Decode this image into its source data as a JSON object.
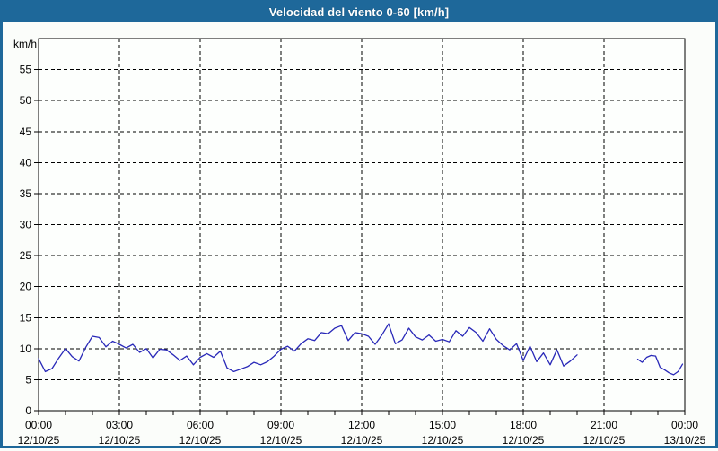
{
  "window": {
    "title": "Velocidad del viento 0-60 [km/h]"
  },
  "colors": {
    "titlebar_bg": "#1e689a",
    "frame_border": "#1e689a",
    "page_bg": "#fbfdfa",
    "plot_bg": "#fdfffd",
    "grid": "#000000",
    "text": "#000000",
    "line": "#2929b8"
  },
  "chart_data": {
    "type": "line",
    "title": "Velocidad del viento 0-60 [km/h]",
    "xlabel": "",
    "ylabel": "km/h",
    "ylim": [
      0,
      60
    ],
    "xlim_minutes": [
      0,
      1440
    ],
    "grid": "dashed",
    "legend": "none",
    "y_ticks": [
      0,
      5,
      10,
      15,
      20,
      25,
      30,
      35,
      40,
      45,
      50,
      55
    ],
    "x_minor_tick_every_minutes": 60,
    "x_major_ticks": [
      {
        "minutes": 0,
        "time": "00:00",
        "date": "12/10/25"
      },
      {
        "minutes": 180,
        "time": "03:00",
        "date": "12/10/25"
      },
      {
        "minutes": 360,
        "time": "06:00",
        "date": "12/10/25"
      },
      {
        "minutes": 540,
        "time": "09:00",
        "date": "12/10/25"
      },
      {
        "minutes": 720,
        "time": "12:00",
        "date": "12/10/25"
      },
      {
        "minutes": 900,
        "time": "15:00",
        "date": "12/10/25"
      },
      {
        "minutes": 1080,
        "time": "18:00",
        "date": "12/10/25"
      },
      {
        "minutes": 1260,
        "time": "21:00",
        "date": "12/10/25"
      },
      {
        "minutes": 1440,
        "time": "00:00",
        "date": "13/10/25"
      }
    ],
    "series": [
      {
        "name": "wind-speed-kmh",
        "color": "#2929b8",
        "segments": [
          {
            "start_min": 0,
            "step_min": 15,
            "values": [
              8.4,
              6.3,
              6.8,
              8.5,
              10.0,
              8.7,
              8.0,
              10.2,
              12.0,
              11.8,
              10.3,
              11.2,
              10.7,
              10.1,
              10.7,
              9.4,
              10.0,
              8.5,
              9.9,
              9.8,
              9.0,
              8.1,
              8.8,
              7.4,
              8.6,
              9.2,
              8.6,
              9.6,
              6.9,
              6.3,
              6.7,
              7.1,
              7.8,
              7.4,
              7.9,
              8.8,
              9.9,
              10.4,
              9.6,
              10.8,
              11.6,
              11.3,
              12.6,
              12.4,
              13.3,
              13.7,
              11.3,
              12.6,
              12.4,
              12.0,
              10.7,
              12.2,
              14.0,
              10.8,
              11.4,
              13.3,
              11.9,
              11.4,
              12.2,
              11.2,
              11.5,
              11.1,
              12.9,
              12.0,
              13.4,
              12.6,
              11.2,
              13.2,
              11.5,
              10.5,
              9.8,
              10.8,
              8.1,
              10.4,
              7.9,
              9.3,
              7.4,
              9.8,
              7.2,
              8.0,
              9.0
            ]
          },
          {
            "start_min": 1335,
            "step_min": 10,
            "values": [
              8.3,
              7.8,
              8.6,
              8.9,
              8.8,
              7.0,
              6.6,
              6.1,
              5.8,
              6.3,
              7.5
            ]
          }
        ]
      }
    ]
  }
}
